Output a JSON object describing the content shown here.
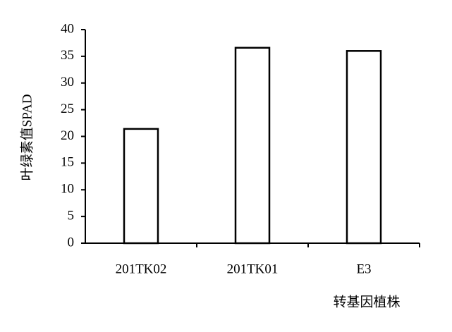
{
  "chart_data": {
    "type": "bar",
    "x_label": "转基因植株",
    "y_label": "叶绿素值SPAD",
    "categories": [
      "201TK02",
      "201TK01",
      "E3"
    ],
    "values": [
      21.4,
      36.6,
      36.0
    ],
    "color": "#ffffff",
    "edge_color": "#000000",
    "ylim": [
      0,
      40
    ],
    "yticks": [
      0,
      5,
      10,
      15,
      20,
      25,
      30,
      35,
      40
    ],
    "grid": false
  }
}
